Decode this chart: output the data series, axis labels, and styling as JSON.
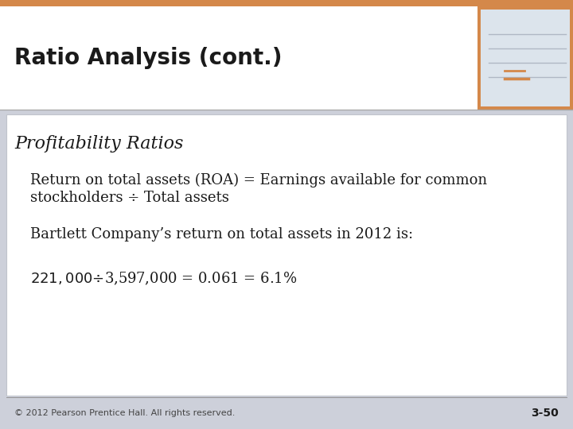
{
  "title": "Ratio Analysis (cont.)",
  "subtitle": "Profitability Ratios",
  "line1a": "Return on total assets (ROA) = Earnings available for common",
  "line1b": "stockholders ÷ Total assets",
  "line2": "Bartlett Company’s return on total assets in 2012 is:",
  "line3": "$221,000 ÷ $3,597,000 = 0.061 = 6.1%",
  "footer_left": "© 2012 Pearson Prentice Hall. All rights reserved.",
  "footer_right": "3-50",
  "orange_bar": "#D4884A",
  "header_bg": "#ffffff",
  "body_bg": "#cdd0da",
  "content_bg": "#ffffff",
  "title_color": "#1a1a1a",
  "body_color": "#1a1a1a",
  "title_fontsize": 20,
  "subtitle_fontsize": 16,
  "body_fontsize": 13,
  "footer_fontsize": 8
}
